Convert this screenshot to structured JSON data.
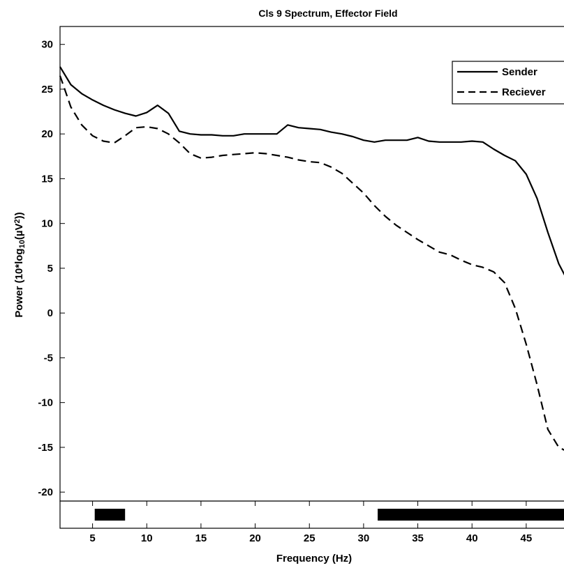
{
  "chart_data": {
    "type": "line",
    "title": "Cls 9 Spectrum, Effector Field",
    "xlabel": "Frequency (Hz)",
    "ylabel": "Power (10*log10(µV²))",
    "ylabel_parts": {
      "pre": "Power (10*log",
      "sub": "10",
      "mid": "(µV",
      "sup": "2",
      "post": "))"
    },
    "xlim": [
      2,
      49
    ],
    "ylim": [
      -21,
      32
    ],
    "xticks": [
      5,
      10,
      15,
      20,
      25,
      30,
      35,
      40,
      45
    ],
    "yticks": [
      -20,
      -15,
      -10,
      -5,
      0,
      5,
      10,
      15,
      20,
      25,
      30
    ],
    "grid": false,
    "legend_position": "top-right",
    "series": [
      {
        "name": "Sender",
        "style": "solid",
        "color": "#000000",
        "x": [
          2,
          3,
          4,
          5,
          6,
          7,
          8,
          9,
          10,
          11,
          12,
          13,
          14,
          15,
          16,
          17,
          18,
          19,
          20,
          21,
          22,
          23,
          24,
          25,
          26,
          27,
          28,
          29,
          30,
          31,
          32,
          33,
          34,
          35,
          36,
          37,
          38,
          39,
          40,
          41,
          42,
          43,
          44,
          45,
          46,
          47,
          48,
          49
        ],
        "y": [
          27.5,
          25.5,
          24.5,
          23.8,
          23.2,
          22.7,
          22.3,
          22.0,
          22.4,
          23.2,
          22.3,
          20.3,
          20.0,
          19.9,
          19.9,
          19.8,
          19.8,
          20.0,
          20.0,
          20.0,
          20.0,
          21.0,
          20.7,
          20.6,
          20.5,
          20.2,
          20.0,
          19.7,
          19.3,
          19.1,
          19.3,
          19.3,
          19.3,
          19.6,
          19.2,
          19.1,
          19.1,
          19.1,
          19.2,
          19.1,
          18.3,
          17.6,
          17.0,
          15.5,
          12.8,
          9.0,
          5.5,
          3.2
        ]
      },
      {
        "name": "Reciever",
        "style": "dashed",
        "color": "#000000",
        "x": [
          2,
          3,
          4,
          5,
          6,
          7,
          8,
          9,
          10,
          11,
          12,
          13,
          14,
          15,
          16,
          17,
          18,
          19,
          20,
          21,
          22,
          23,
          24,
          25,
          26,
          27,
          28,
          29,
          30,
          31,
          32,
          33,
          34,
          35,
          36,
          37,
          38,
          39,
          40,
          41,
          42,
          43,
          44,
          45,
          46,
          47,
          48,
          49
        ],
        "y": [
          26.5,
          23.0,
          21.0,
          19.8,
          19.2,
          19.0,
          19.8,
          20.7,
          20.8,
          20.6,
          20.0,
          19.0,
          17.8,
          17.3,
          17.4,
          17.6,
          17.7,
          17.8,
          17.9,
          17.8,
          17.6,
          17.4,
          17.1,
          16.9,
          16.8,
          16.3,
          15.6,
          14.5,
          13.4,
          12.0,
          10.8,
          9.8,
          9.0,
          8.2,
          7.5,
          6.8,
          6.5,
          5.9,
          5.4,
          5.1,
          4.6,
          3.4,
          0.5,
          -3.5,
          -8.0,
          -13.0,
          -15.0,
          -15.6
        ]
      }
    ],
    "significance_bars": [
      {
        "x_start": 5.2,
        "x_end": 8.0
      },
      {
        "x_start": 31.3,
        "x_end": 49
      }
    ]
  }
}
